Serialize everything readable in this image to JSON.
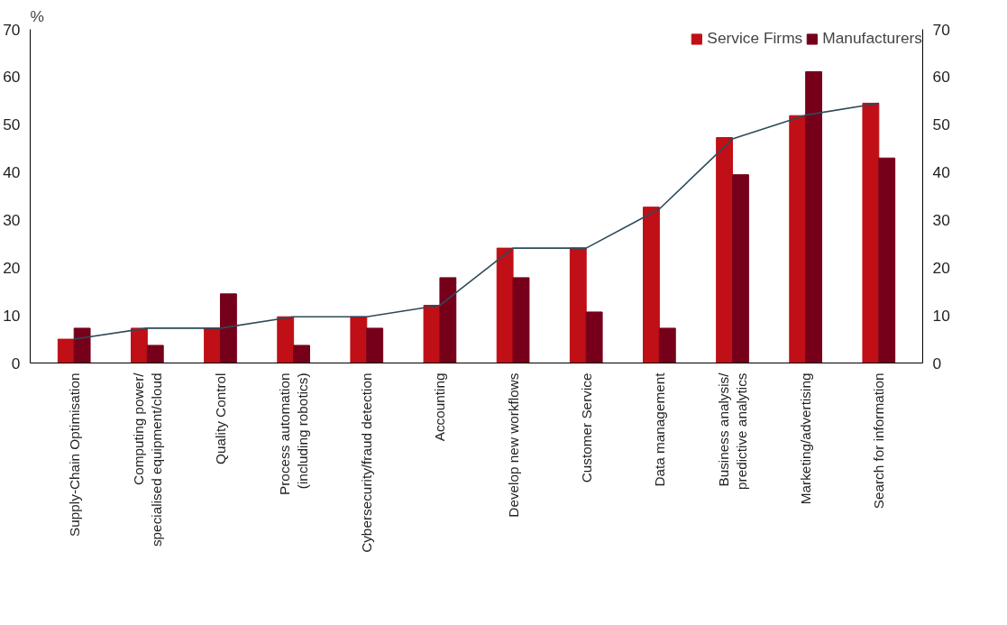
{
  "chart_data": {
    "type": "bar",
    "ylabel": "%",
    "categories": [
      "Supply-Chain Optimisation",
      "Computing power/\nspecialised equipment/cloud",
      "Quality Control",
      "Process automation\n(including robotics)",
      "Cybersecurity/fraud detection",
      "Accounting",
      "Develop new workflows",
      "Customer Service",
      "Data management",
      "Business analysis/\npredictive analytics",
      "Marketing/advertising",
      "Search for information"
    ],
    "series": [
      {
        "name": "Service Firms",
        "color": "#c00f16",
        "values": [
          5,
          7.3,
          7.3,
          9.7,
          9.7,
          12.1,
          24.1,
          24.1,
          32.7,
          47.3,
          51.9,
          54.5
        ]
      },
      {
        "name": "Manufacturers",
        "color": "#76001a",
        "values": [
          7.3,
          3.7,
          14.5,
          3.7,
          7.3,
          17.9,
          17.9,
          10.7,
          7.3,
          39.5,
          61.1,
          43
        ]
      },
      {
        "type": "line",
        "color": "#2e4a5a",
        "values": [
          5,
          7.3,
          7.3,
          9.7,
          9.7,
          12.1,
          24.1,
          24.1,
          32.3,
          47,
          52,
          54.5
        ]
      }
    ],
    "ylim": [
      0,
      70
    ],
    "yticks": [
      0,
      10,
      20,
      30,
      40,
      50,
      60,
      70
    ],
    "y2lim": [
      0,
      70
    ],
    "y2ticks": [
      0,
      10,
      20,
      30,
      40,
      50,
      60,
      70
    ],
    "legend": "top right",
    "grid": false
  }
}
